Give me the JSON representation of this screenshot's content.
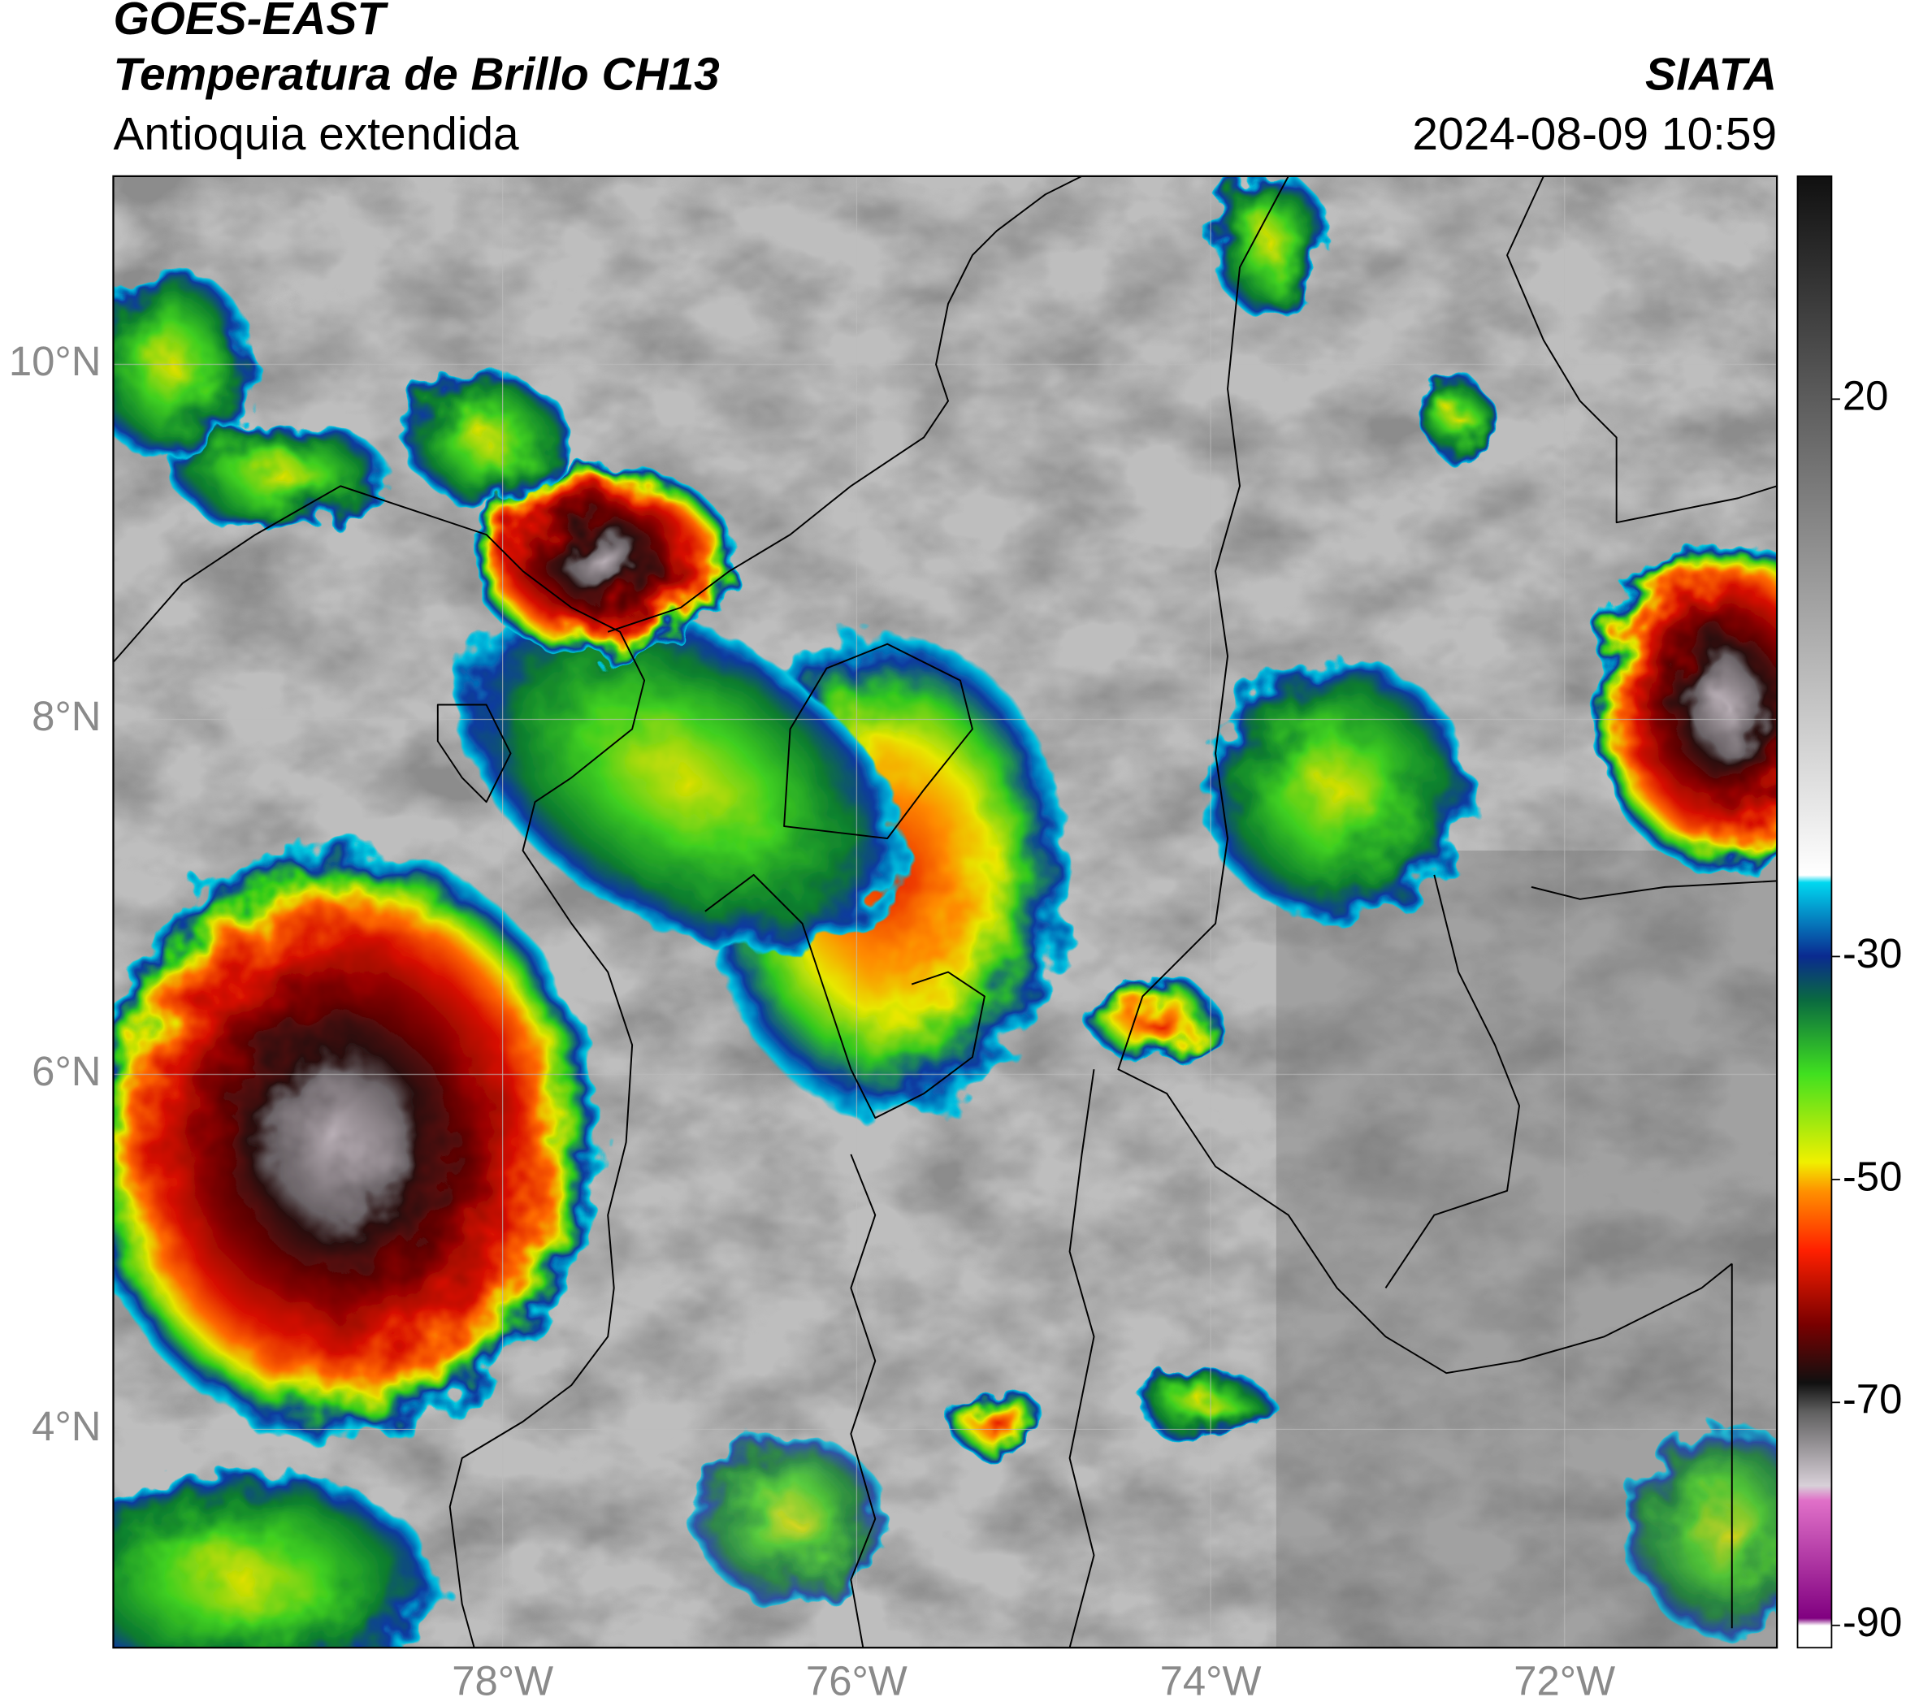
{
  "header": {
    "title": "GOES-EAST",
    "subtitle": "Temperatura de Brillo CH13",
    "region": "Antioquia extendida",
    "source": "SIATA",
    "datetime": "2024-08-09 10:59"
  },
  "map": {
    "lon_range": [
      -80.2,
      -70.8
    ],
    "lat_range": [
      2.77,
      11.06
    ],
    "lon_ticks": [
      {
        "value": -78,
        "label": "78°W"
      },
      {
        "value": -76,
        "label": "76°W"
      },
      {
        "value": -74,
        "label": "74°W"
      },
      {
        "value": -72,
        "label": "72°W"
      }
    ],
    "lat_ticks": [
      {
        "value": 10,
        "label": "10°N"
      },
      {
        "value": 8,
        "label": "8°N"
      },
      {
        "value": 6,
        "label": "6°N"
      },
      {
        "value": 4,
        "label": "4°N"
      }
    ],
    "grid": true
  },
  "colorbar": {
    "range": [
      -92,
      40
    ],
    "ticks": [
      20,
      -30,
      -50,
      -70,
      -90
    ]
  }
}
